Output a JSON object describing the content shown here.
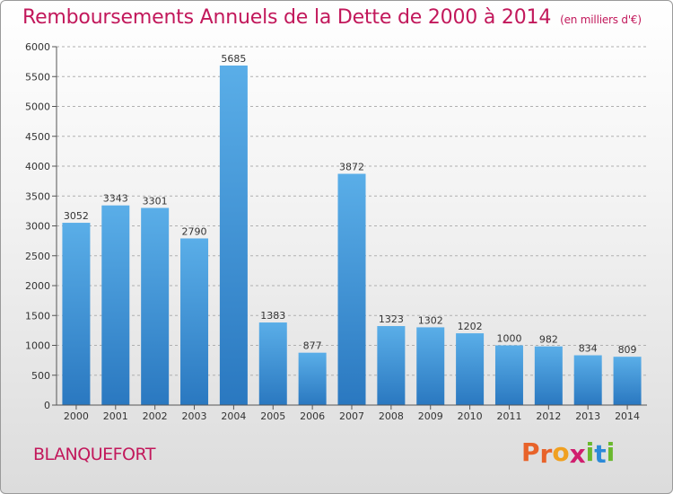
{
  "header": {
    "title": "Remboursements Annuels de la Dette de 2000 à 2014",
    "unit": "(en milliers d'€)"
  },
  "footer": {
    "town": "BLANQUEFORT",
    "logo": [
      "P",
      "r",
      "o",
      "x",
      "i",
      "t",
      "i"
    ]
  },
  "colors": {
    "title": "#c2185b",
    "bar_top": "#5aaee8",
    "bar_bottom": "#2a78c0",
    "logo": [
      "#e8632a",
      "#e8632a",
      "#f0a020",
      "#d01e6e",
      "#6ab82e",
      "#2c8ad8",
      "#6ab82e"
    ]
  },
  "chart_data": {
    "type": "bar",
    "title": "Remboursements Annuels de la Dette de 2000 à 2014",
    "subtitle": "(en milliers d'€)",
    "xlabel": "",
    "ylabel": "",
    "ylim": [
      0,
      6000
    ],
    "yticks": [
      0,
      500,
      1000,
      1500,
      2000,
      2500,
      3000,
      3500,
      4000,
      4500,
      5000,
      5500,
      6000
    ],
    "grid": "horizontal dashed",
    "categories": [
      "2000",
      "2001",
      "2002",
      "2003",
      "2004",
      "2005",
      "2006",
      "2007",
      "2008",
      "2009",
      "2010",
      "2011",
      "2012",
      "2013",
      "2014"
    ],
    "values": [
      3052,
      3343,
      3301,
      2790,
      5685,
      1383,
      877,
      3872,
      1323,
      1302,
      1202,
      1000,
      982,
      834,
      809
    ]
  }
}
